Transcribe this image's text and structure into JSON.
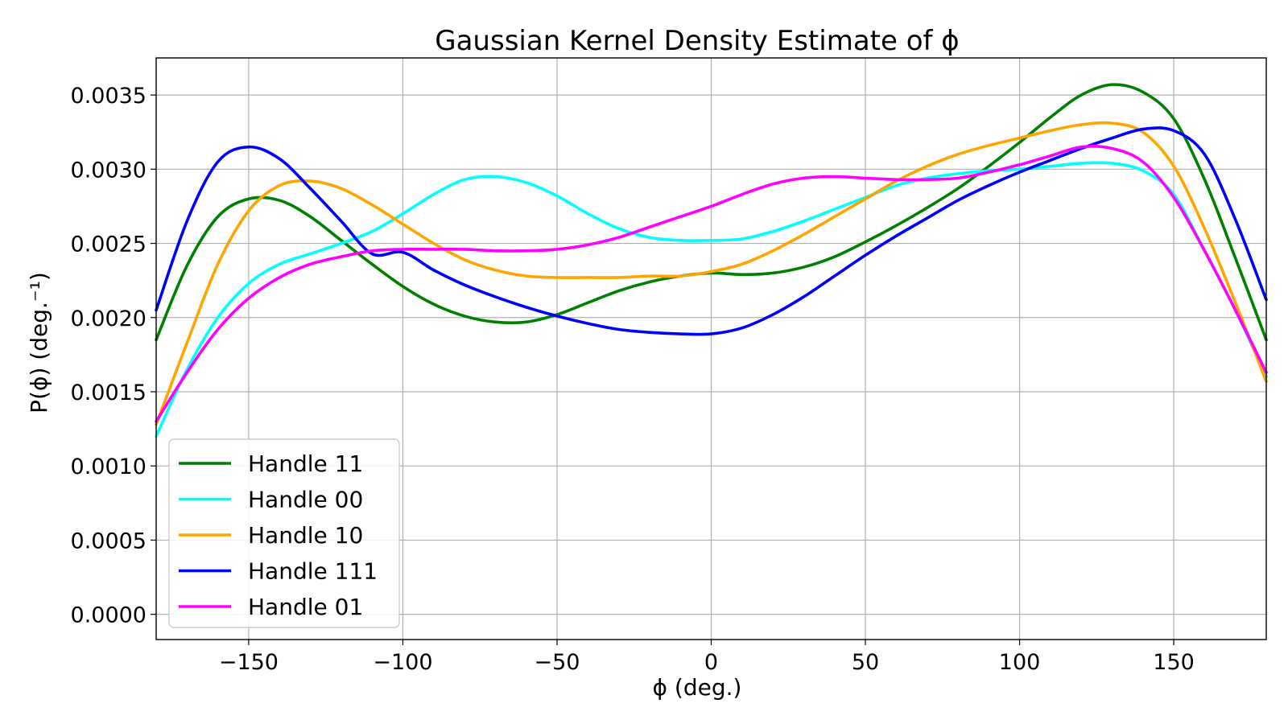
{
  "chart_data": {
    "type": "line",
    "title": "Gaussian Kernel Density Estimate of ϕ",
    "xlabel": "ϕ (deg.)",
    "ylabel": "P(ϕ) (deg.⁻¹)",
    "xlim": [
      -180,
      180
    ],
    "ylim": [
      -0.00017,
      0.00375
    ],
    "grid": true,
    "legend_position": "lower-left",
    "x_ticks": [
      -150,
      -100,
      -50,
      0,
      50,
      100,
      150
    ],
    "x_tick_labels": [
      "−150",
      "−100",
      "−50",
      "0",
      "50",
      "100",
      "150"
    ],
    "y_ticks": [
      0,
      0.0005,
      0.001,
      0.0015,
      0.002,
      0.0025,
      0.003,
      0.0035
    ],
    "y_tick_labels": [
      "0.0000",
      "0.0005",
      "0.0010",
      "0.0015",
      "0.0020",
      "0.0025",
      "0.0030",
      "0.0035"
    ],
    "x": [
      -180,
      -170,
      -160,
      -150,
      -140,
      -130,
      -120,
      -110,
      -100,
      -90,
      -80,
      -70,
      -60,
      -50,
      -40,
      -30,
      -20,
      -10,
      0,
      10,
      20,
      30,
      40,
      50,
      60,
      70,
      80,
      90,
      100,
      110,
      120,
      130,
      140,
      150,
      160,
      170,
      180
    ],
    "series": [
      {
        "name": "Handle 11",
        "color": "#008000",
        "values": [
          0.00185,
          0.00235,
          0.00268,
          0.0028,
          0.00279,
          0.00268,
          0.00252,
          0.00236,
          0.00221,
          0.00209,
          0.00201,
          0.00197,
          0.00197,
          0.00202,
          0.0021,
          0.00218,
          0.00224,
          0.00228,
          0.0023,
          0.00229,
          0.0023,
          0.00234,
          0.00241,
          0.00251,
          0.00262,
          0.00274,
          0.00287,
          0.00302,
          0.00318,
          0.00335,
          0.0035,
          0.00357,
          0.00352,
          0.00334,
          0.00293,
          0.0024,
          0.00185
        ]
      },
      {
        "name": "Handle 00",
        "color": "#00ffff",
        "values": [
          0.0012,
          0.00165,
          0.002,
          0.00223,
          0.00236,
          0.00243,
          0.0025,
          0.00258,
          0.0027,
          0.00283,
          0.00293,
          0.00295,
          0.00291,
          0.00282,
          0.0027,
          0.0026,
          0.00254,
          0.00252,
          0.00252,
          0.00253,
          0.00258,
          0.00265,
          0.00273,
          0.00281,
          0.00289,
          0.00294,
          0.00297,
          0.00299,
          0.003,
          0.00302,
          0.00304,
          0.00304,
          0.00299,
          0.00283,
          0.00245,
          0.00205,
          0.0016
        ]
      },
      {
        "name": "Handle 10",
        "color": "#ffa500",
        "values": [
          0.00128,
          0.00183,
          0.00236,
          0.00272,
          0.00289,
          0.00292,
          0.00287,
          0.00276,
          0.00263,
          0.0025,
          0.00239,
          0.00232,
          0.00228,
          0.00227,
          0.00227,
          0.00227,
          0.00228,
          0.00228,
          0.00231,
          0.00236,
          0.00245,
          0.00256,
          0.00268,
          0.0028,
          0.00292,
          0.00302,
          0.0031,
          0.00316,
          0.00321,
          0.00326,
          0.0033,
          0.00331,
          0.00325,
          0.00302,
          0.0026,
          0.0021,
          0.00157
        ]
      },
      {
        "name": "Handle 111",
        "color": "#0000ff",
        "values": [
          0.00205,
          0.00265,
          0.00305,
          0.00315,
          0.00307,
          0.00287,
          0.00265,
          0.00243,
          0.00244,
          0.00232,
          0.00222,
          0.00214,
          0.00207,
          0.00201,
          0.00196,
          0.00192,
          0.0019,
          0.00189,
          0.00189,
          0.00193,
          0.00202,
          0.00214,
          0.00228,
          0.00242,
          0.00255,
          0.00267,
          0.00279,
          0.00289,
          0.00298,
          0.00306,
          0.00314,
          0.00321,
          0.00327,
          0.00326,
          0.0031,
          0.00266,
          0.00212
        ]
      },
      {
        "name": "Handle 01",
        "color": "#ff00ff",
        "values": [
          0.0013,
          0.00163,
          0.00192,
          0.00213,
          0.00227,
          0.00236,
          0.00241,
          0.00245,
          0.00246,
          0.00246,
          0.00246,
          0.00245,
          0.00245,
          0.00246,
          0.00249,
          0.00254,
          0.00261,
          0.00268,
          0.00275,
          0.00283,
          0.0029,
          0.00294,
          0.00295,
          0.00294,
          0.00293,
          0.00293,
          0.00294,
          0.00298,
          0.00303,
          0.00309,
          0.00315,
          0.00314,
          0.00305,
          0.00281,
          0.00245,
          0.00205,
          0.00163
        ]
      }
    ]
  }
}
